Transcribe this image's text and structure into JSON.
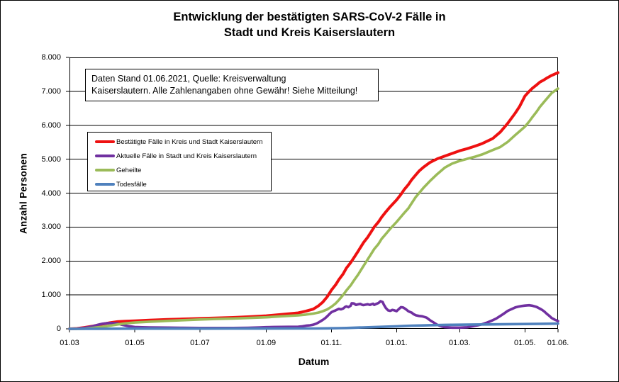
{
  "header": {
    "title_line1": "Entwicklung der bestätigten SARS-CoV-2 Fälle in",
    "title_line2": "Stadt und Kreis Kaiserslautern"
  },
  "annotation": {
    "line1": "Daten Stand 01.06.2021, Quelle: Kreisverwaltung",
    "line2": "Kaiserslautern. Alle Zahlenangaben ohne Gewähr! Siehe Mitteilung!"
  },
  "chart_data": {
    "type": "line",
    "title": "Entwicklung der bestätigten SARS-CoV-2 Fälle in Stadt und Kreis Kaiserslautern",
    "xlabel": "Datum",
    "ylabel": "Anzahl Personen",
    "x_unit": "days since 01.03.2020",
    "x_range": [
      0,
      457
    ],
    "ylim": [
      0,
      8000
    ],
    "grid": "horizontal gridlines every 1000, black",
    "legend_position": "inside upper-left",
    "x_ticks": [
      {
        "label": "01.03",
        "day": 0
      },
      {
        "label": "01.05",
        "day": 61
      },
      {
        "label": "01.07",
        "day": 122
      },
      {
        "label": "01.09",
        "day": 184
      },
      {
        "label": "01.11.",
        "day": 245
      },
      {
        "label": "01.01.",
        "day": 306
      },
      {
        "label": "01.03.",
        "day": 365
      },
      {
        "label": "01.05.",
        "day": 426
      },
      {
        "label": "01.06.",
        "day": 457
      }
    ],
    "y_ticks": [
      {
        "label": "0",
        "value": 0
      },
      {
        "label": "1.000",
        "value": 1000
      },
      {
        "label": "2.000",
        "value": 2000
      },
      {
        "label": "3.000",
        "value": 3000
      },
      {
        "label": "4.000",
        "value": 4000
      },
      {
        "label": "5.000",
        "value": 5000
      },
      {
        "label": "6.000",
        "value": 6000
      },
      {
        "label": "7.000",
        "value": 7000
      },
      {
        "label": "8.000",
        "value": 8000
      }
    ],
    "series": [
      {
        "name": "Bestätigte Fälle in Kreis und Stadt Kaiserslautern",
        "color": "#ee1111",
        "points": [
          [
            0,
            0
          ],
          [
            7,
            10
          ],
          [
            14,
            40
          ],
          [
            21,
            75
          ],
          [
            31,
            140
          ],
          [
            38,
            180
          ],
          [
            45,
            210
          ],
          [
            52,
            225
          ],
          [
            61,
            235
          ],
          [
            75,
            255
          ],
          [
            92,
            275
          ],
          [
            106,
            290
          ],
          [
            122,
            305
          ],
          [
            136,
            320
          ],
          [
            153,
            335
          ],
          [
            167,
            355
          ],
          [
            184,
            385
          ],
          [
            198,
            425
          ],
          [
            214,
            470
          ],
          [
            221,
            520
          ],
          [
            228,
            580
          ],
          [
            233,
            680
          ],
          [
            237,
            790
          ],
          [
            241,
            940
          ],
          [
            245,
            1140
          ],
          [
            249,
            1300
          ],
          [
            252,
            1450
          ],
          [
            256,
            1620
          ],
          [
            259,
            1790
          ],
          [
            263,
            1950
          ],
          [
            266,
            2090
          ],
          [
            270,
            2290
          ],
          [
            275,
            2540
          ],
          [
            279,
            2700
          ],
          [
            282,
            2850
          ],
          [
            285,
            3000
          ],
          [
            289,
            3150
          ],
          [
            292,
            3290
          ],
          [
            296,
            3450
          ],
          [
            300,
            3600
          ],
          [
            306,
            3800
          ],
          [
            310,
            3960
          ],
          [
            313,
            4100
          ],
          [
            317,
            4250
          ],
          [
            320,
            4390
          ],
          [
            324,
            4540
          ],
          [
            327,
            4650
          ],
          [
            331,
            4760
          ],
          [
            337,
            4900
          ],
          [
            344,
            5010
          ],
          [
            351,
            5090
          ],
          [
            358,
            5170
          ],
          [
            365,
            5250
          ],
          [
            372,
            5310
          ],
          [
            379,
            5380
          ],
          [
            386,
            5460
          ],
          [
            396,
            5610
          ],
          [
            403,
            5800
          ],
          [
            410,
            6060
          ],
          [
            417,
            6360
          ],
          [
            421,
            6550
          ],
          [
            426,
            6860
          ],
          [
            430,
            7000
          ],
          [
            433,
            7090
          ],
          [
            437,
            7190
          ],
          [
            440,
            7270
          ],
          [
            444,
            7340
          ],
          [
            447,
            7400
          ],
          [
            451,
            7470
          ],
          [
            457,
            7550
          ]
        ]
      },
      {
        "name": "Aktuelle Fälle in Stadt und Kreis Kaiserslautern",
        "color": "#7030a0",
        "points": [
          [
            0,
            0
          ],
          [
            7,
            5
          ],
          [
            14,
            30
          ],
          [
            21,
            70
          ],
          [
            28,
            130
          ],
          [
            31,
            150
          ],
          [
            35,
            165
          ],
          [
            38,
            172
          ],
          [
            42,
            168
          ],
          [
            45,
            158
          ],
          [
            49,
            120
          ],
          [
            54,
            85
          ],
          [
            61,
            55
          ],
          [
            68,
            45
          ],
          [
            75,
            40
          ],
          [
            84,
            38
          ],
          [
            92,
            35
          ],
          [
            106,
            30
          ],
          [
            122,
            25
          ],
          [
            136,
            25
          ],
          [
            153,
            26
          ],
          [
            167,
            32
          ],
          [
            178,
            40
          ],
          [
            184,
            48
          ],
          [
            191,
            55
          ],
          [
            198,
            56
          ],
          [
            205,
            58
          ],
          [
            214,
            62
          ],
          [
            218,
            75
          ],
          [
            221,
            92
          ],
          [
            225,
            105
          ],
          [
            228,
            122
          ],
          [
            231,
            155
          ],
          [
            233,
            190
          ],
          [
            235,
            225
          ],
          [
            237,
            265
          ],
          [
            239,
            310
          ],
          [
            241,
            365
          ],
          [
            243,
            430
          ],
          [
            245,
            490
          ],
          [
            247,
            520
          ],
          [
            249,
            545
          ],
          [
            252,
            590
          ],
          [
            254,
            575
          ],
          [
            256,
            600
          ],
          [
            258,
            650
          ],
          [
            259,
            662
          ],
          [
            261,
            640
          ],
          [
            263,
            680
          ],
          [
            264,
            755
          ],
          [
            266,
            748
          ],
          [
            268,
            705
          ],
          [
            270,
            722
          ],
          [
            272,
            735
          ],
          [
            274,
            705
          ],
          [
            275,
            700
          ],
          [
            277,
            712
          ],
          [
            279,
            725
          ],
          [
            281,
            705
          ],
          [
            282,
            718
          ],
          [
            284,
            740
          ],
          [
            285,
            705
          ],
          [
            287,
            735
          ],
          [
            289,
            760
          ],
          [
            291,
            815
          ],
          [
            293,
            790
          ],
          [
            294,
            715
          ],
          [
            296,
            610
          ],
          [
            298,
            545
          ],
          [
            300,
            530
          ],
          [
            302,
            558
          ],
          [
            304,
            545
          ],
          [
            306,
            520
          ],
          [
            308,
            580
          ],
          [
            310,
            640
          ],
          [
            312,
            630
          ],
          [
            313,
            615
          ],
          [
            315,
            570
          ],
          [
            317,
            520
          ],
          [
            319,
            490
          ],
          [
            320,
            478
          ],
          [
            322,
            430
          ],
          [
            324,
            400
          ],
          [
            327,
            380
          ],
          [
            330,
            370
          ],
          [
            334,
            330
          ],
          [
            337,
            260
          ],
          [
            341,
            180
          ],
          [
            344,
            120
          ],
          [
            348,
            70
          ],
          [
            351,
            50
          ],
          [
            358,
            35
          ],
          [
            365,
            35
          ],
          [
            372,
            45
          ],
          [
            379,
            90
          ],
          [
            382,
            105
          ],
          [
            386,
            135
          ],
          [
            391,
            190
          ],
          [
            396,
            255
          ],
          [
            399,
            300
          ],
          [
            403,
            380
          ],
          [
            406,
            440
          ],
          [
            410,
            530
          ],
          [
            413,
            575
          ],
          [
            417,
            630
          ],
          [
            420,
            655
          ],
          [
            423,
            672
          ],
          [
            426,
            685
          ],
          [
            428,
            692
          ],
          [
            430,
            695
          ],
          [
            433,
            680
          ],
          [
            435,
            665
          ],
          [
            437,
            645
          ],
          [
            440,
            595
          ],
          [
            442,
            560
          ],
          [
            444,
            515
          ],
          [
            447,
            430
          ],
          [
            449,
            380
          ],
          [
            451,
            320
          ],
          [
            454,
            270
          ],
          [
            457,
            230
          ]
        ]
      },
      {
        "name": "Geheilte",
        "color": "#9bbb59",
        "points": [
          [
            0,
            0
          ],
          [
            10,
            0
          ],
          [
            14,
            5
          ],
          [
            21,
            25
          ],
          [
            31,
            60
          ],
          [
            38,
            95
          ],
          [
            45,
            130
          ],
          [
            52,
            160
          ],
          [
            61,
            185
          ],
          [
            75,
            210
          ],
          [
            92,
            235
          ],
          [
            106,
            255
          ],
          [
            122,
            275
          ],
          [
            136,
            290
          ],
          [
            153,
            305
          ],
          [
            167,
            320
          ],
          [
            184,
            340
          ],
          [
            198,
            370
          ],
          [
            214,
            400
          ],
          [
            221,
            420
          ],
          [
            228,
            450
          ],
          [
            233,
            480
          ],
          [
            237,
            520
          ],
          [
            241,
            570
          ],
          [
            245,
            650
          ],
          [
            249,
            750
          ],
          [
            252,
            850
          ],
          [
            256,
            1000
          ],
          [
            259,
            1130
          ],
          [
            263,
            1280
          ],
          [
            266,
            1420
          ],
          [
            270,
            1600
          ],
          [
            275,
            1850
          ],
          [
            279,
            2050
          ],
          [
            282,
            2200
          ],
          [
            285,
            2350
          ],
          [
            289,
            2500
          ],
          [
            292,
            2650
          ],
          [
            296,
            2800
          ],
          [
            300,
            2950
          ],
          [
            306,
            3150
          ],
          [
            310,
            3300
          ],
          [
            313,
            3410
          ],
          [
            317,
            3550
          ],
          [
            320,
            3700
          ],
          [
            324,
            3890
          ],
          [
            327,
            4000
          ],
          [
            331,
            4150
          ],
          [
            337,
            4350
          ],
          [
            344,
            4560
          ],
          [
            351,
            4750
          ],
          [
            358,
            4870
          ],
          [
            365,
            4950
          ],
          [
            372,
            5010
          ],
          [
            379,
            5070
          ],
          [
            386,
            5140
          ],
          [
            396,
            5270
          ],
          [
            403,
            5360
          ],
          [
            410,
            5510
          ],
          [
            417,
            5710
          ],
          [
            421,
            5820
          ],
          [
            426,
            5960
          ],
          [
            430,
            6110
          ],
          [
            433,
            6240
          ],
          [
            437,
            6400
          ],
          [
            440,
            6540
          ],
          [
            444,
            6690
          ],
          [
            447,
            6800
          ],
          [
            451,
            6950
          ],
          [
            457,
            7080
          ]
        ]
      },
      {
        "name": "Todesfälle",
        "color": "#4f81bd",
        "points": [
          [
            0,
            0
          ],
          [
            20,
            2
          ],
          [
            31,
            3
          ],
          [
            45,
            5
          ],
          [
            61,
            6
          ],
          [
            92,
            7
          ],
          [
            122,
            7
          ],
          [
            153,
            8
          ],
          [
            184,
            8
          ],
          [
            214,
            10
          ],
          [
            228,
            11
          ],
          [
            241,
            14
          ],
          [
            245,
            16
          ],
          [
            252,
            20
          ],
          [
            259,
            26
          ],
          [
            266,
            33
          ],
          [
            275,
            42
          ],
          [
            282,
            48
          ],
          [
            289,
            56
          ],
          [
            296,
            65
          ],
          [
            306,
            76
          ],
          [
            313,
            85
          ],
          [
            320,
            93
          ],
          [
            327,
            99
          ],
          [
            337,
            106
          ],
          [
            344,
            111
          ],
          [
            351,
            116
          ],
          [
            358,
            119
          ],
          [
            365,
            122
          ],
          [
            379,
            127
          ],
          [
            396,
            132
          ],
          [
            410,
            137
          ],
          [
            426,
            142
          ],
          [
            440,
            148
          ],
          [
            451,
            152
          ],
          [
            457,
            155
          ]
        ]
      }
    ]
  }
}
